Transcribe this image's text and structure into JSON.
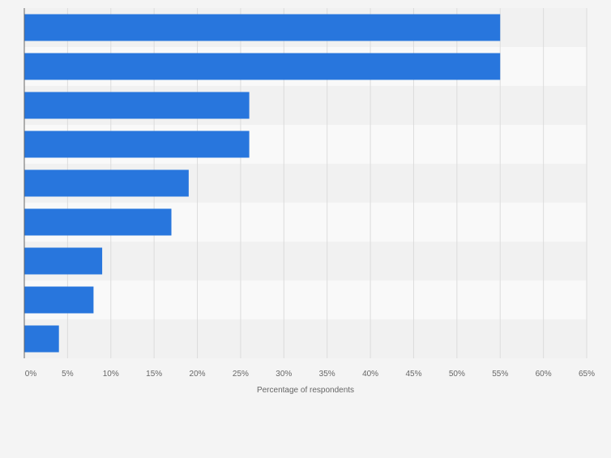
{
  "chart_data": {
    "type": "bar",
    "orientation": "horizontal",
    "title": "",
    "xlabel": "Percentage of respondents",
    "ylabel": "",
    "categories": [
      "",
      "",
      "",
      "",
      "",
      "",
      "",
      "",
      ""
    ],
    "values": [
      55,
      55,
      26,
      26,
      19,
      17,
      9,
      8,
      4
    ],
    "xlim": [
      0,
      65
    ],
    "x_ticks": [
      0,
      5,
      10,
      15,
      20,
      25,
      30,
      35,
      40,
      45,
      50,
      55,
      60,
      65
    ],
    "x_tick_labels": [
      "0%",
      "5%",
      "10%",
      "15%",
      "20%",
      "25%",
      "30%",
      "35%",
      "40%",
      "45%",
      "50%",
      "55%",
      "60%",
      "65%"
    ],
    "grid": true,
    "legend": "none",
    "colors": {
      "bar": "#2876dd",
      "background": "#f4f4f4",
      "band_light": "#f9f9f9",
      "band_dark": "#f1f1f1",
      "grid": "#dcdcdc",
      "axis": "#666666",
      "text": "#666666"
    }
  }
}
